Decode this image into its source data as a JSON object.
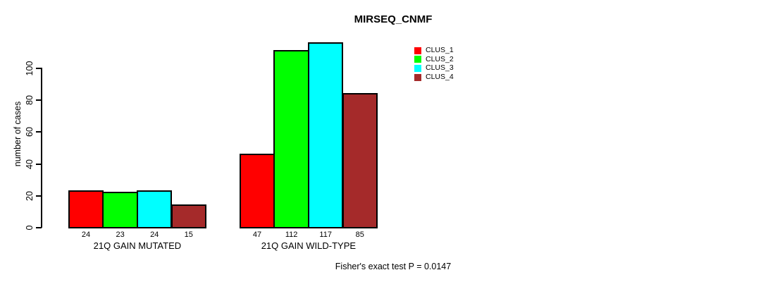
{
  "chart_data": {
    "type": "bar",
    "title": "MIRSEQ_CNMF",
    "ylabel": "number of cases",
    "xlabel": "",
    "yticks": [
      0,
      20,
      40,
      60,
      80,
      100
    ],
    "ylim": [
      0,
      117
    ],
    "grid": false,
    "legend_position": "top-right",
    "legend": [
      {
        "name": "CLUS_1",
        "color": "#ff0000"
      },
      {
        "name": "CLUS_2",
        "color": "#00ff00"
      },
      {
        "name": "CLUS_3",
        "color": "#00ffff"
      },
      {
        "name": "CLUS_4",
        "color": "#a52a2a"
      }
    ],
    "categories": [
      "21Q GAIN MUTATED",
      "21Q GAIN WILD-TYPE"
    ],
    "series": [
      {
        "name": "CLUS_1",
        "values": [
          24,
          47
        ]
      },
      {
        "name": "CLUS_2",
        "values": [
          23,
          112
        ]
      },
      {
        "name": "CLUS_3",
        "values": [
          24,
          117
        ]
      },
      {
        "name": "CLUS_4",
        "values": [
          15,
          85
        ]
      }
    ],
    "groups": [
      {
        "label": "21Q GAIN MUTATED",
        "values": [
          24,
          23,
          24,
          15
        ]
      },
      {
        "label": "21Q GAIN WILD-TYPE",
        "values": [
          47,
          112,
          117,
          85
        ]
      }
    ],
    "value_labels_shown": true,
    "annotation": "Fisher's exact test P = 0.0147"
  }
}
